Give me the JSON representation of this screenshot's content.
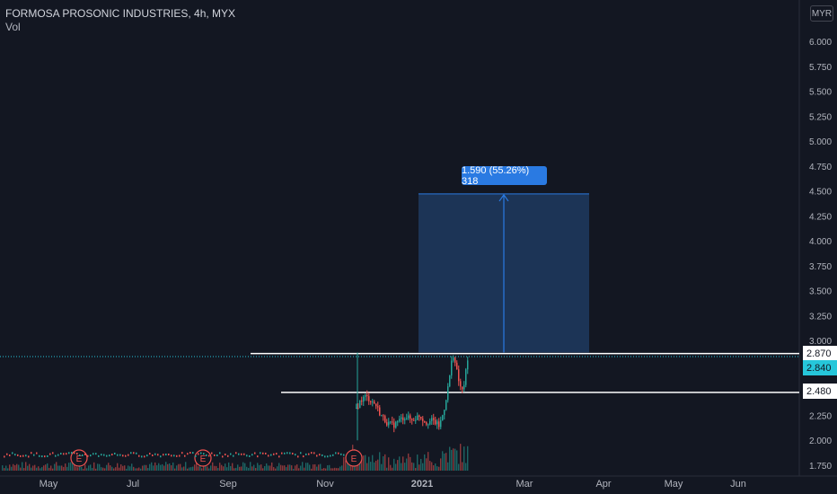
{
  "header": {
    "symbol_line": "FORMOSA PROSONIC INDUSTRIES, 4h, MYX",
    "volume_label": "Vol",
    "currency_button": "MYR"
  },
  "measure_label": "1.590 (55.26%) 318",
  "price_labels": {
    "resistance": "2.870",
    "last": "2.840",
    "support": "2.480"
  },
  "colors": {
    "background": "#131722",
    "up": "#26a69a",
    "down": "#ef5350",
    "measure_fill": "#1e3a5f",
    "measure_accent": "#2a7ae2",
    "last_price": "#26c6da"
  },
  "chart_data": {
    "type": "candlestick",
    "y_axis_ticks": [
      "6.000",
      "5.750",
      "5.500",
      "5.250",
      "5.000",
      "4.750",
      "4.500",
      "4.250",
      "4.000",
      "3.750",
      "3.500",
      "3.250",
      "3.000",
      "2.750",
      "2.500",
      "2.250",
      "2.000",
      "1.750"
    ],
    "x_axis_labels": [
      "May",
      "Jul",
      "Sep",
      "Nov",
      "2021",
      "Mar",
      "Apr",
      "May",
      "Jun"
    ],
    "ylim": [
      1.7,
      6.1
    ],
    "earnings_markers": [
      "E",
      "E",
      "E"
    ],
    "horizontal_lines": [
      2.87,
      2.48
    ],
    "last_price": 2.84,
    "measure": {
      "from": 2.88,
      "to": 4.47,
      "change": "1.590",
      "percent": "55.26%",
      "bars": "318"
    },
    "price_path": [
      [
        0.0,
        2.32
      ],
      [
        0.04,
        2.4
      ],
      [
        0.08,
        2.44
      ],
      [
        0.12,
        2.41
      ],
      [
        0.17,
        2.36
      ],
      [
        0.22,
        2.25
      ],
      [
        0.28,
        2.17
      ],
      [
        0.33,
        2.15
      ],
      [
        0.38,
        2.2
      ],
      [
        0.44,
        2.24
      ],
      [
        0.5,
        2.2
      ],
      [
        0.56,
        2.25
      ],
      [
        0.62,
        2.18
      ],
      [
        0.68,
        2.2
      ],
      [
        0.74,
        2.14
      ],
      [
        0.78,
        2.3
      ],
      [
        0.82,
        2.55
      ],
      [
        0.86,
        2.88
      ],
      [
        0.89,
        2.72
      ],
      [
        0.92,
        2.55
      ],
      [
        0.95,
        2.48
      ],
      [
        0.98,
        2.72
      ],
      [
        1.0,
        2.84
      ]
    ]
  }
}
